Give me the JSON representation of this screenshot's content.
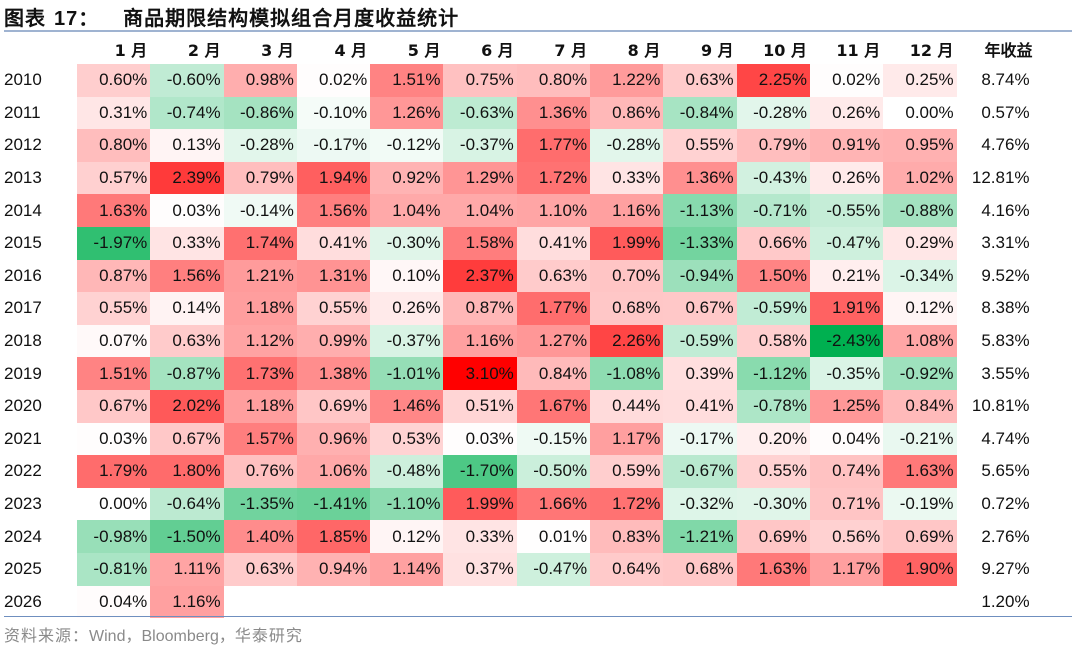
{
  "title": {
    "prefix": "图表 ",
    "number": "17",
    "colon": "：",
    "text": "商品期限结构模拟组合月度收益统计"
  },
  "table": {
    "headers": [
      "",
      "1 月",
      "2 月",
      "3 月",
      "4 月",
      "5 月",
      "6 月",
      "7 月",
      "8 月",
      "9 月",
      "10 月",
      "11 月",
      "12 月",
      "年收益"
    ],
    "rows": [
      {
        "year": "2010",
        "months": [
          "0.60%",
          "-0.60%",
          "0.98%",
          "0.02%",
          "1.51%",
          "0.75%",
          "0.80%",
          "1.22%",
          "0.63%",
          "2.25%",
          "0.02%",
          "0.25%"
        ],
        "annual": "8.74%"
      },
      {
        "year": "2011",
        "months": [
          "0.31%",
          "-0.74%",
          "-0.86%",
          "-0.10%",
          "1.26%",
          "-0.63%",
          "1.36%",
          "0.86%",
          "-0.84%",
          "-0.28%",
          "0.26%",
          "0.00%"
        ],
        "annual": "0.57%"
      },
      {
        "year": "2012",
        "months": [
          "0.80%",
          "0.13%",
          "-0.28%",
          "-0.17%",
          "-0.12%",
          "-0.37%",
          "1.77%",
          "-0.28%",
          "0.55%",
          "0.79%",
          "0.91%",
          "0.95%"
        ],
        "annual": "4.76%"
      },
      {
        "year": "2013",
        "months": [
          "0.57%",
          "2.39%",
          "0.79%",
          "1.94%",
          "0.92%",
          "1.29%",
          "1.72%",
          "0.33%",
          "1.36%",
          "-0.43%",
          "0.26%",
          "1.02%"
        ],
        "annual": "12.81%"
      },
      {
        "year": "2014",
        "months": [
          "1.63%",
          "0.03%",
          "-0.14%",
          "1.56%",
          "1.04%",
          "1.04%",
          "1.10%",
          "1.16%",
          "-1.13%",
          "-0.71%",
          "-0.55%",
          "-0.88%"
        ],
        "annual": "4.16%"
      },
      {
        "year": "2015",
        "months": [
          "-1.97%",
          "0.33%",
          "1.74%",
          "0.41%",
          "-0.30%",
          "1.58%",
          "0.41%",
          "1.99%",
          "-1.33%",
          "0.66%",
          "-0.47%",
          "0.29%"
        ],
        "annual": "3.31%"
      },
      {
        "year": "2016",
        "months": [
          "0.87%",
          "1.56%",
          "1.21%",
          "1.31%",
          "0.10%",
          "2.37%",
          "0.63%",
          "0.70%",
          "-0.94%",
          "1.50%",
          "0.21%",
          "-0.34%"
        ],
        "annual": "9.52%"
      },
      {
        "year": "2017",
        "months": [
          "0.55%",
          "0.14%",
          "1.18%",
          "0.55%",
          "0.26%",
          "0.87%",
          "1.77%",
          "0.68%",
          "0.67%",
          "-0.59%",
          "1.91%",
          "0.12%"
        ],
        "annual": "8.38%"
      },
      {
        "year": "2018",
        "months": [
          "0.07%",
          "0.63%",
          "1.12%",
          "0.99%",
          "-0.37%",
          "1.16%",
          "1.27%",
          "2.26%",
          "-0.59%",
          "0.58%",
          "-2.43%",
          "1.08%"
        ],
        "annual": "5.83%"
      },
      {
        "year": "2019",
        "months": [
          "1.51%",
          "-0.87%",
          "1.73%",
          "1.38%",
          "-1.01%",
          "3.10%",
          "0.84%",
          "-1.08%",
          "0.39%",
          "-1.12%",
          "-0.35%",
          "-0.92%"
        ],
        "annual": "3.55%"
      },
      {
        "year": "2020",
        "months": [
          "0.67%",
          "2.02%",
          "1.18%",
          "0.69%",
          "1.46%",
          "0.51%",
          "1.67%",
          "0.44%",
          "0.41%",
          "-0.78%",
          "1.25%",
          "0.84%"
        ],
        "annual": "10.81%"
      },
      {
        "year": "2021",
        "months": [
          "0.03%",
          "0.67%",
          "1.57%",
          "0.96%",
          "0.53%",
          "0.03%",
          "-0.15%",
          "1.17%",
          "-0.17%",
          "0.20%",
          "0.04%",
          "-0.21%"
        ],
        "annual": "4.74%"
      },
      {
        "year": "2022",
        "months": [
          "1.79%",
          "1.80%",
          "0.76%",
          "1.06%",
          "-0.48%",
          "-1.70%",
          "-0.50%",
          "0.59%",
          "-0.67%",
          "0.55%",
          "0.74%",
          "1.63%"
        ],
        "annual": "5.65%"
      },
      {
        "year": "2023",
        "months": [
          "0.00%",
          "-0.64%",
          "-1.35%",
          "-1.41%",
          "-1.10%",
          "1.99%",
          "1.66%",
          "1.72%",
          "-0.32%",
          "-0.30%",
          "0.71%",
          "-0.19%"
        ],
        "annual": "0.72%"
      },
      {
        "year": "2024",
        "months": [
          "-0.98%",
          "-1.50%",
          "1.40%",
          "1.85%",
          "0.12%",
          "0.33%",
          "0.01%",
          "0.83%",
          "-1.21%",
          "0.69%",
          "0.56%",
          "0.69%"
        ],
        "annual": "2.76%"
      },
      {
        "year": "2025",
        "months": [
          "-0.81%",
          "1.11%",
          "0.63%",
          "0.94%",
          "1.14%",
          "0.37%",
          "-0.47%",
          "0.64%",
          "0.68%",
          "1.63%",
          "1.17%",
          "1.90%"
        ],
        "annual": "9.27%"
      },
      {
        "year": "2026",
        "months": [
          "0.04%",
          "1.16%",
          "",
          "",
          "",
          "",
          "",
          "",
          "",
          "",
          "",
          ""
        ],
        "annual": "1.20%"
      }
    ]
  },
  "colors": {
    "positive_max": "#ff0000",
    "negative_max": "#00b050",
    "neutral": "#ffffff",
    "positive_max_value": 3.1,
    "negative_max_value": -2.43
  },
  "source": {
    "label": "资料来源：",
    "text": "Wind，Bloomberg，",
    "org": "华泰研究"
  }
}
